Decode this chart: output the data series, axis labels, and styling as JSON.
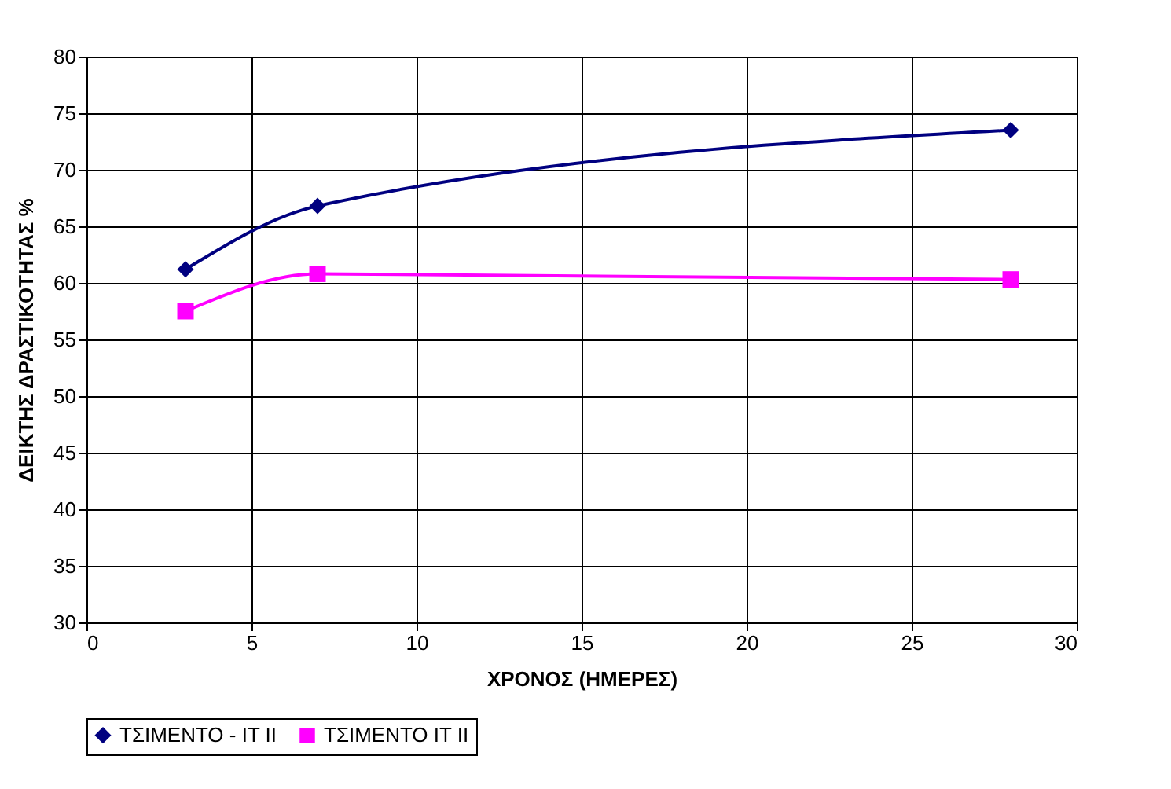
{
  "chart_data": {
    "type": "line",
    "xlabel": "ΧΡΟΝΟΣ (ΗΜΕΡΕΣ)",
    "ylabel": "ΔΕΙΚΤΗΣ ΔΡΑΣΤΙΚΟΤΗΤΑΣ %",
    "x": [
      3,
      7,
      28
    ],
    "series": [
      {
        "name": "ΤΣΙΜΕΝΤΟ - ΙΤ ΙΙ",
        "color": "#000080",
        "marker": "diamond",
        "values": [
          61.2,
          66.8,
          73.5
        ]
      },
      {
        "name": "ΤΣΙΜΕΝΤΟ ΙΤ ΙΙ",
        "color": "#ff00ff",
        "marker": "square",
        "values": [
          57.5,
          60.8,
          60.3
        ]
      }
    ],
    "xlim": [
      0,
      30
    ],
    "xticks": [
      0,
      5,
      10,
      15,
      20,
      25,
      30
    ],
    "ylim": [
      30,
      80
    ],
    "yticks": [
      30,
      35,
      40,
      45,
      50,
      55,
      60,
      65,
      70,
      75,
      80
    ],
    "grid": true,
    "legend": "bottom",
    "line_style": "solid"
  }
}
